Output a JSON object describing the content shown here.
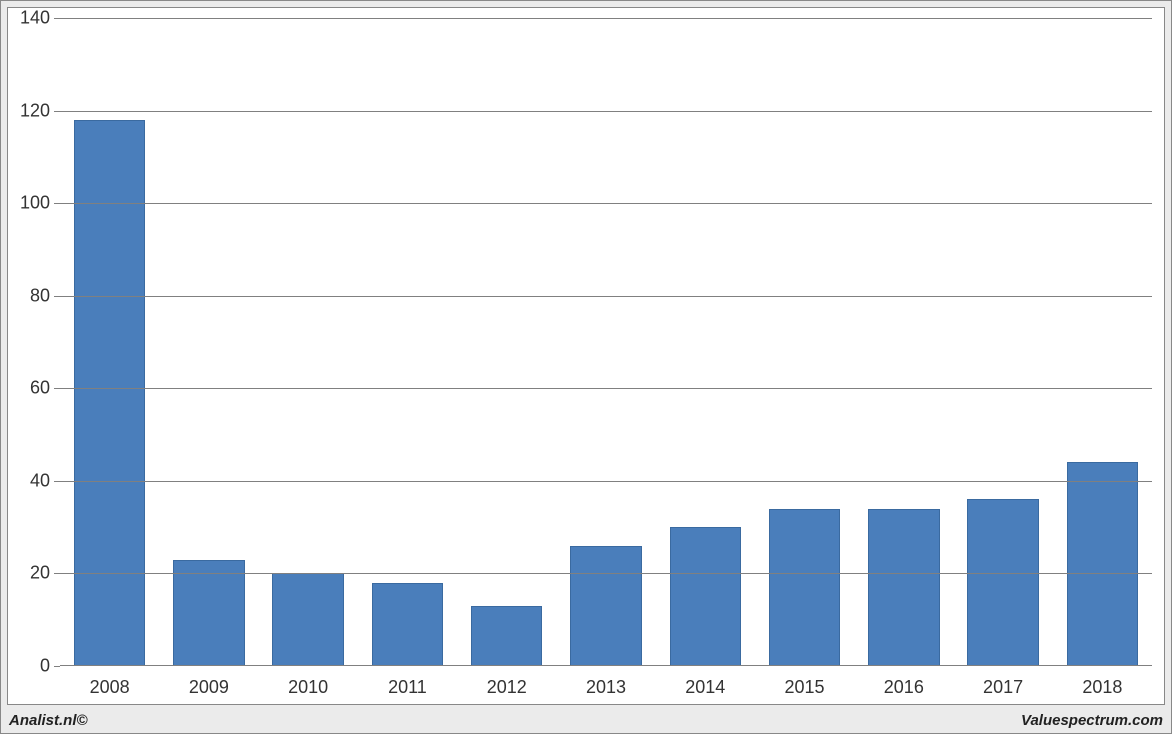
{
  "chart": {
    "type": "bar",
    "categories": [
      "2008",
      "2009",
      "2010",
      "2011",
      "2012",
      "2013",
      "2014",
      "2015",
      "2016",
      "2017",
      "2018"
    ],
    "values": [
      118,
      23,
      20,
      18,
      13,
      26,
      30,
      34,
      34,
      36,
      44
    ],
    "bar_color": "#4a7ebb",
    "bar_border_color": "#3a6aa0",
    "background_color": "#ffffff",
    "page_background": "#ebebeb",
    "grid_color": "#808080",
    "ylim": [
      0,
      140
    ],
    "ytick_step": 20,
    "yticks": [
      0,
      20,
      40,
      60,
      80,
      100,
      120,
      140
    ],
    "bar_width_ratio": 0.72,
    "label_fontsize": 18,
    "label_color": "#333333"
  },
  "footer": {
    "left": "Analist.nl©",
    "right": "Valuespectrum.com"
  }
}
